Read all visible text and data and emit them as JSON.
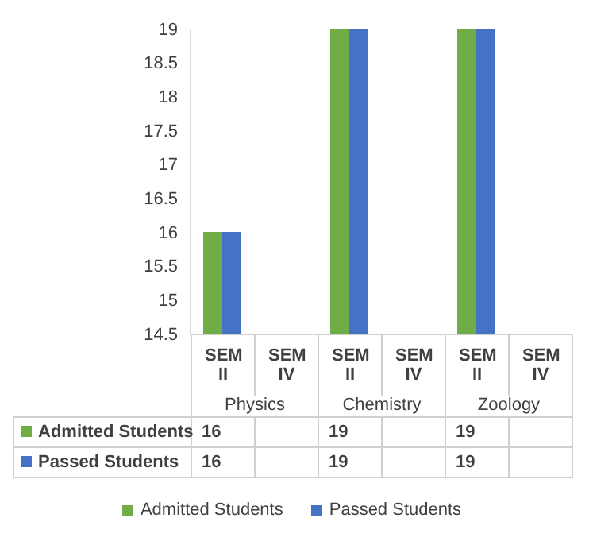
{
  "chart_data": {
    "type": "bar",
    "categories": [
      "SEM II",
      "SEM IV",
      "SEM II",
      "SEM IV",
      "SEM II",
      "SEM IV"
    ],
    "annotations": [
      "Physics",
      "Chemistry",
      "Zoology"
    ],
    "series": [
      {
        "name": "Admitted Students",
        "color": "#70ad47",
        "values": [
          16,
          null,
          19,
          null,
          19,
          null
        ]
      },
      {
        "name": "Passed Students",
        "color": "#4472c4",
        "values": [
          16,
          null,
          19,
          null,
          19,
          null
        ]
      }
    ],
    "ylim": [
      14.5,
      19
    ],
    "yticks": [
      14.5,
      15,
      15.5,
      16,
      16.5,
      17,
      17.5,
      18,
      18.5,
      19
    ],
    "grid": false,
    "legend": "bottom",
    "data_labels": true
  }
}
